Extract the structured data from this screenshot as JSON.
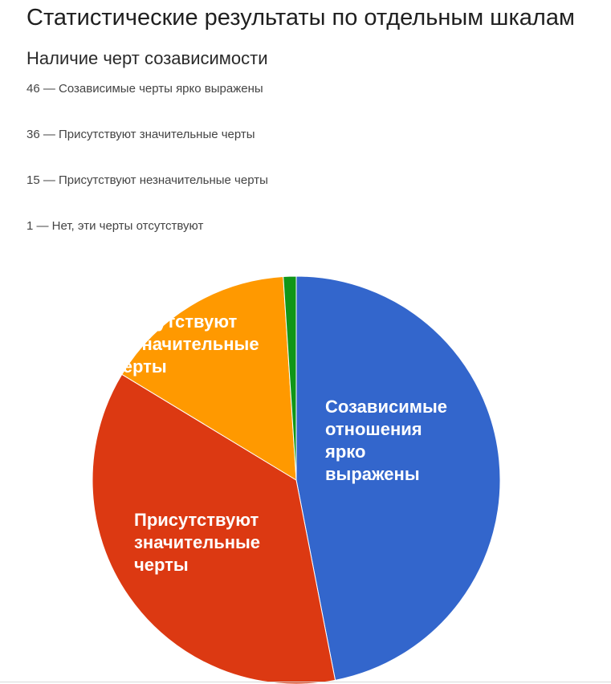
{
  "header": {
    "title": "Статистические результаты по отдельным шкалам",
    "subtitle": "Наличие черт созависимости"
  },
  "legend_lines": [
    "46 — Созависимые черты ярко выражены",
    "36 — Присутствуют значительные черты",
    "15 — Присутствуют незначительные черты",
    "1 — Нет, эти черты отсутствуют"
  ],
  "chart_data": {
    "type": "pie",
    "title": "",
    "slices": [
      {
        "value": 46,
        "color": "#3366cc",
        "label_lines": [
          "Созависимые",
          "отношения",
          "ярко",
          "выражены"
        ],
        "label_color": "#ffffff"
      },
      {
        "value": 36,
        "color": "#dc3912",
        "label_lines": [
          "Присутствуют",
          "значительные",
          "черты"
        ],
        "label_color": "#ffffff"
      },
      {
        "value": 15,
        "color": "#ff9900",
        "label_lines": [
          "Присутствуют",
          "незначительные",
          "черты"
        ],
        "label_color": "#ffffff"
      },
      {
        "value": 1,
        "color": "#109618",
        "label_lines": [],
        "label_color": "#ffffff"
      }
    ],
    "start_angle_deg": 0,
    "direction": "clockwise",
    "legend": "none"
  }
}
